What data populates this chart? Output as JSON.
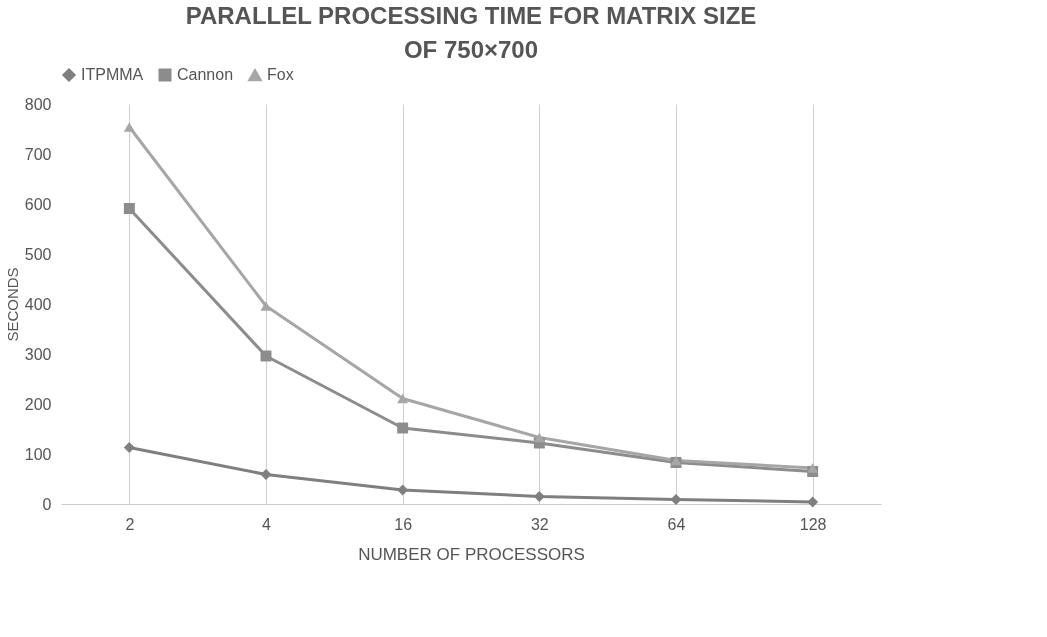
{
  "chart_data": {
    "type": "line",
    "title": "PARALLEL PROCESSING TIME FOR  MATRIX SIZE OF 750×700",
    "xlabel": "NUMBER OF PROCESSORS",
    "ylabel": "SECONDS",
    "categories": [
      "2",
      "4",
      "16",
      "32",
      "64",
      "128"
    ],
    "series": [
      {
        "name": "ITPMMA",
        "color": "#7f7f7f",
        "marker": "diamond",
        "values": [
          113,
          59,
          28,
          15,
          9,
          4
        ]
      },
      {
        "name": "Cannon",
        "color": "#8c8c8c",
        "marker": "square",
        "values": [
          591,
          296,
          152,
          122,
          83,
          65
        ]
      },
      {
        "name": "Fox",
        "color": "#a6a6a6",
        "marker": "triangle",
        "values": [
          754,
          396,
          211,
          133,
          87,
          72
        ]
      }
    ],
    "ylim": [
      0,
      800
    ],
    "yticks": [
      0,
      100,
      200,
      300,
      400,
      500,
      600,
      700,
      800
    ],
    "grid": "x",
    "legend": "top"
  }
}
